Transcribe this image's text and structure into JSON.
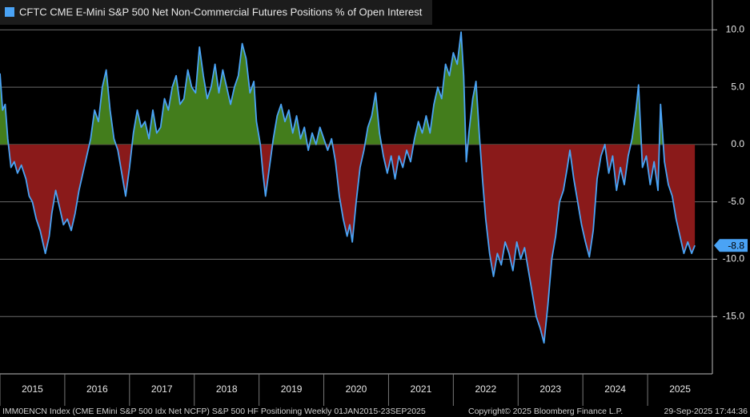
{
  "chart_data": {
    "type": "area",
    "title": "CFTC CME E-Mini S&P 500 Net Non-Commercial Futures Positions % of Open Interest",
    "footer_left": "IMM0ENCN Index (CME EMini S&P 500 Idx Net NCFP) S&P 500 HF Positioning  Weekly 01JAN2015-23SEP2025",
    "footer_center": "Copyright© 2025 Bloomberg Finance L.P.",
    "footer_right": "29-Sep-2025 17:44:36",
    "x": [
      2015.0,
      2015.04,
      2015.08,
      2015.12,
      2015.17,
      2015.22,
      2015.27,
      2015.33,
      2015.4,
      2015.45,
      2015.5,
      2015.56,
      2015.62,
      2015.7,
      2015.76,
      2015.8,
      2015.86,
      2015.92,
      2015.98,
      2016.04,
      2016.1,
      2016.16,
      2016.22,
      2016.28,
      2016.34,
      2016.4,
      2016.46,
      2016.52,
      2016.58,
      2016.64,
      2016.7,
      2016.76,
      2016.82,
      2016.88,
      2016.94,
      2017.0,
      2017.06,
      2017.12,
      2017.18,
      2017.24,
      2017.3,
      2017.36,
      2017.42,
      2017.48,
      2017.54,
      2017.6,
      2017.66,
      2017.72,
      2017.78,
      2017.84,
      2017.9,
      2017.96,
      2018.02,
      2018.08,
      2018.14,
      2018.2,
      2018.26,
      2018.32,
      2018.38,
      2018.44,
      2018.5,
      2018.56,
      2018.62,
      2018.68,
      2018.74,
      2018.8,
      2018.86,
      2018.92,
      2018.96,
      2019.02,
      2019.06,
      2019.1,
      2019.16,
      2019.22,
      2019.28,
      2019.34,
      2019.4,
      2019.46,
      2019.52,
      2019.58,
      2019.64,
      2019.7,
      2019.76,
      2019.82,
      2019.88,
      2019.94,
      2020.0,
      2020.06,
      2020.12,
      2020.18,
      2020.24,
      2020.3,
      2020.36,
      2020.4,
      2020.44,
      2020.5,
      2020.56,
      2020.62,
      2020.68,
      2020.74,
      2020.8,
      2020.86,
      2020.92,
      2020.98,
      2021.04,
      2021.1,
      2021.16,
      2021.22,
      2021.28,
      2021.34,
      2021.4,
      2021.46,
      2021.52,
      2021.58,
      2021.64,
      2021.7,
      2021.76,
      2021.82,
      2021.88,
      2021.94,
      2022.0,
      2022.06,
      2022.12,
      2022.16,
      2022.2,
      2022.24,
      2022.3,
      2022.35,
      2022.4,
      2022.45,
      2022.5,
      2022.56,
      2022.62,
      2022.68,
      2022.74,
      2022.8,
      2022.86,
      2022.92,
      2022.98,
      2023.04,
      2023.1,
      2023.16,
      2023.22,
      2023.28,
      2023.34,
      2023.4,
      2023.46,
      2023.52,
      2023.58,
      2023.64,
      2023.7,
      2023.76,
      2023.8,
      2023.86,
      2023.92,
      2023.98,
      2024.04,
      2024.1,
      2024.16,
      2024.22,
      2024.28,
      2024.34,
      2024.4,
      2024.46,
      2024.52,
      2024.58,
      2024.64,
      2024.7,
      2024.76,
      2024.82,
      2024.86,
      2024.92,
      2024.98,
      2025.04,
      2025.1,
      2025.16,
      2025.2,
      2025.26,
      2025.32,
      2025.38,
      2025.44,
      2025.5,
      2025.56,
      2025.62,
      2025.68,
      2025.73
    ],
    "series": [
      {
        "name": "CFTC CME E-Mini S&P 500 Net Non-Commercial Futures Positions % of Open Interest",
        "color": "#4aa3f5",
        "values": [
          6.2,
          3.0,
          3.5,
          0.5,
          -2.0,
          -1.5,
          -2.5,
          -1.8,
          -3.0,
          -4.5,
          -5.0,
          -6.5,
          -7.5,
          -9.5,
          -8.0,
          -6.0,
          -4.0,
          -5.5,
          -7.0,
          -6.5,
          -7.5,
          -6.0,
          -4.0,
          -2.5,
          -1.0,
          0.5,
          3.0,
          2.0,
          5.0,
          6.5,
          3.0,
          0.5,
          -0.5,
          -2.5,
          -4.5,
          -2.0,
          1.0,
          3.0,
          1.5,
          2.0,
          0.5,
          3.0,
          1.0,
          1.5,
          4.0,
          3.0,
          5.0,
          6.0,
          3.5,
          4.0,
          6.5,
          5.0,
          4.5,
          8.5,
          6.0,
          4.0,
          5.0,
          7.0,
          4.5,
          6.5,
          5.0,
          3.5,
          5.0,
          6.0,
          8.8,
          7.5,
          4.5,
          5.5,
          2.0,
          0.0,
          -2.5,
          -4.5,
          -2.0,
          0.5,
          2.5,
          3.5,
          2.0,
          3.0,
          1.0,
          2.5,
          0.5,
          1.5,
          -0.5,
          1.0,
          0.0,
          1.5,
          0.5,
          -0.5,
          0.5,
          -1.5,
          -4.5,
          -6.5,
          -8.0,
          -7.0,
          -8.5,
          -5.0,
          -2.0,
          -0.5,
          1.5,
          2.5,
          4.5,
          1.0,
          -1.0,
          -2.5,
          -1.0,
          -3.0,
          -1.0,
          -2.0,
          -0.5,
          -1.5,
          0.5,
          2.0,
          1.0,
          2.5,
          1.0,
          3.5,
          5.0,
          4.0,
          7.0,
          6.0,
          8.0,
          7.0,
          9.8,
          6.0,
          -1.5,
          1.0,
          4.0,
          5.5,
          1.0,
          -3.0,
          -6.5,
          -9.5,
          -11.5,
          -9.5,
          -10.5,
          -8.5,
          -9.5,
          -11.0,
          -8.5,
          -10.0,
          -9.0,
          -11.0,
          -13.0,
          -15.0,
          -16.0,
          -17.3,
          -14.0,
          -10.0,
          -8.0,
          -5.0,
          -4.0,
          -2.0,
          -0.5,
          -3.0,
          -5.0,
          -7.0,
          -8.5,
          -9.8,
          -7.5,
          -3.0,
          -1.0,
          0.0,
          -2.5,
          -1.0,
          -4.0,
          -2.0,
          -3.5,
          -1.0,
          0.5,
          3.0,
          5.2,
          -2.0,
          -1.0,
          -3.5,
          -1.5,
          -4.0,
          3.5,
          -1.5,
          -3.5,
          -4.5,
          -6.5,
          -8.0,
          -9.5,
          -8.5,
          -9.5,
          -8.8
        ]
      }
    ],
    "positive_color": "#437d1c",
    "negative_color": "#8a1a1a",
    "xlim": [
      2015,
      2026
    ],
    "xticks": [
      2015,
      2016,
      2017,
      2018,
      2019,
      2020,
      2021,
      2022,
      2023,
      2024,
      2025
    ],
    "ylim": [
      -20,
      12.6
    ],
    "yticks": [
      {
        "value": 10,
        "label": "10.0"
      },
      {
        "value": 5,
        "label": "5.0"
      },
      {
        "value": 0,
        "label": "0.0"
      },
      {
        "value": -5,
        "label": "-5.0"
      },
      {
        "value": -10,
        "label": "-10.0"
      },
      {
        "value": -15,
        "label": "-15.0"
      }
    ],
    "grid": true
  }
}
